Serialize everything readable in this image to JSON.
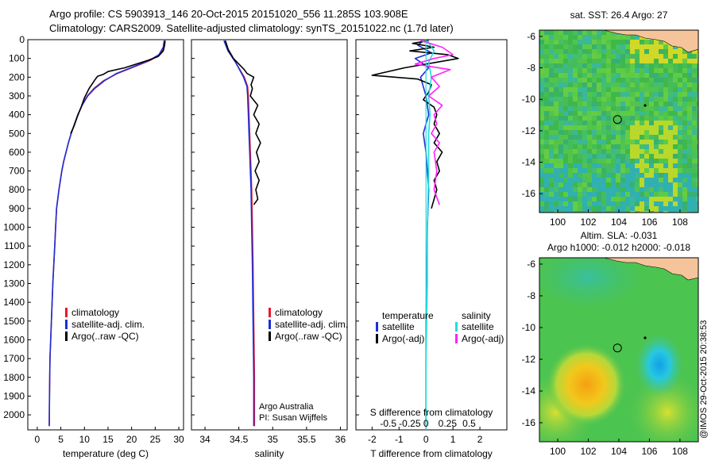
{
  "header": {
    "line1": "Argo profile: CS 5903913_146 20-Oct-2015 20151020_556 11.285S 103.908E",
    "line2": "Climatology: CARS2009. Satellite-adjusted climatology: synTS_20151022.nc (1.7d later)"
  },
  "footer": "@IMOS 29-Oct-2015 20:38:53",
  "colors": {
    "climatology": "#e8182a",
    "satellite": "#1b2fd8",
    "argo": "#000000",
    "argo_adj": "#ff22ff",
    "sat_salinity": "#22dddd"
  },
  "chart_data": [
    {
      "type": "line",
      "id": "temperature",
      "xlabel": "temperature (deg C)",
      "xlim": [
        -2,
        31
      ],
      "ylim": [
        0,
        2080
      ],
      "xticks": [
        0,
        5,
        10,
        15,
        20,
        25,
        30
      ],
      "yticks": [
        0,
        100,
        200,
        300,
        400,
        500,
        600,
        700,
        800,
        900,
        1000,
        1100,
        1200,
        1300,
        1400,
        1500,
        1600,
        1700,
        1800,
        1900,
        2000
      ],
      "legend": [
        "climatology",
        "satellite-adj. clim.",
        "Argo(..raw -QC)"
      ],
      "series": [
        {
          "name": "climatology",
          "color": "#e8182a",
          "x": [
            27.0,
            26.8,
            26.0,
            24.0,
            20.0,
            17.0,
            14.0,
            12.0,
            10.6,
            9.5,
            8.6,
            7.9,
            7.2,
            6.6,
            6.1,
            5.6,
            5.2,
            4.9,
            4.6,
            4.35,
            4.1,
            3.9,
            3.7,
            3.5,
            3.3,
            3.15,
            3.0,
            2.85,
            2.7,
            2.6,
            2.55
          ],
          "y": [
            5,
            40,
            80,
            110,
            150,
            180,
            220,
            260,
            300,
            350,
            400,
            450,
            500,
            550,
            600,
            650,
            700,
            750,
            800,
            850,
            900,
            1000,
            1100,
            1200,
            1300,
            1400,
            1500,
            1600,
            1700,
            1900,
            2060
          ]
        },
        {
          "name": "satellite-adj. clim.",
          "color": "#1b2fd8",
          "x": [
            26.9,
            26.7,
            25.8,
            23.8,
            19.8,
            16.8,
            14.2,
            12.2,
            10.7,
            9.5,
            8.6,
            7.9,
            7.2,
            6.6,
            6.1,
            5.6,
            5.2,
            4.9,
            4.6,
            4.35,
            4.1,
            3.9,
            3.7,
            3.5,
            3.3,
            3.15,
            3.0,
            2.85,
            2.7,
            2.6,
            2.55
          ],
          "y": [
            5,
            40,
            80,
            110,
            150,
            180,
            220,
            260,
            300,
            350,
            400,
            450,
            500,
            550,
            600,
            650,
            700,
            750,
            800,
            850,
            900,
            1000,
            1100,
            1200,
            1300,
            1400,
            1500,
            1600,
            1700,
            1900,
            2060
          ]
        },
        {
          "name": "Argo(..raw -QC)",
          "color": "#000000",
          "x": [
            27.1,
            27.0,
            26.7,
            25.6,
            23.5,
            21.0,
            18.5,
            15.0,
            14.0,
            12.8,
            12.2,
            11.0,
            10.0,
            9.3,
            8.5,
            7.8,
            7.1
          ],
          "y": [
            5,
            30,
            60,
            90,
            110,
            130,
            150,
            170,
            185,
            195,
            215,
            260,
            310,
            360,
            410,
            460,
            500
          ]
        }
      ]
    },
    {
      "type": "line",
      "id": "salinity",
      "xlabel": "salinity",
      "xlim": [
        33.8,
        36.1
      ],
      "ylim": [
        0,
        2080
      ],
      "xticks": [
        34,
        34.5,
        35,
        35.5,
        36
      ],
      "legend": [
        "climatology",
        "satellite-adj. clim.",
        "Argo(..raw -QC)"
      ],
      "annotations": [
        "Argo Australia",
        "PI: Susan Wijffels"
      ],
      "series": [
        {
          "name": "climatology",
          "color": "#e8182a",
          "x": [
            34.3,
            34.35,
            34.45,
            34.58,
            34.63,
            34.64,
            34.65,
            34.66,
            34.67,
            34.68,
            34.69,
            34.7,
            34.71,
            34.72,
            34.73,
            34.73
          ],
          "y": [
            5,
            60,
            120,
            200,
            250,
            300,
            400,
            500,
            600,
            700,
            800,
            1000,
            1200,
            1500,
            1800,
            2060
          ]
        },
        {
          "name": "satellite-adj. clim.",
          "color": "#1b2fd8",
          "x": [
            34.28,
            34.34,
            34.45,
            34.57,
            34.62,
            34.63,
            34.64,
            34.65,
            34.66,
            34.67,
            34.68,
            34.69,
            34.7,
            34.71,
            34.72,
            34.72
          ],
          "y": [
            5,
            60,
            120,
            200,
            250,
            300,
            400,
            500,
            600,
            700,
            800,
            1000,
            1200,
            1500,
            1800,
            2060
          ]
        },
        {
          "name": "Argo(..raw -QC)",
          "color": "#000000",
          "x": [
            34.3,
            34.34,
            34.42,
            34.5,
            34.58,
            34.62,
            34.72,
            34.68,
            34.7,
            34.67,
            34.78,
            34.72,
            34.8,
            34.75,
            34.82,
            34.76,
            34.8,
            34.74,
            34.8,
            34.75,
            34.78,
            34.72
          ],
          "y": [
            5,
            50,
            100,
            130,
            160,
            180,
            200,
            240,
            260,
            300,
            350,
            400,
            450,
            500,
            550,
            600,
            650,
            700,
            750,
            800,
            850,
            880
          ]
        }
      ]
    },
    {
      "type": "line",
      "id": "difference",
      "xlabel": "T difference from climatology",
      "secondary_xlabel": "S difference from climatology",
      "xlim": [
        -2.6,
        3.0
      ],
      "ylim": [
        0,
        2080
      ],
      "xticks": [
        -2,
        -1,
        0,
        1,
        2
      ],
      "secondary_xticks": [
        "-0.5",
        "-0.25",
        "0",
        "0.25",
        "0.5"
      ],
      "secondary_xtick_pos": [
        -1.4,
        -0.6,
        0,
        0.8,
        1.6
      ],
      "legend_headers": [
        "temperature",
        "salinity"
      ],
      "legend": [
        "satellite",
        "Argo(-adj)",
        "satellite",
        "Argo(-adj)"
      ],
      "series": [
        {
          "name": "satellite",
          "color": "#1b2fd8",
          "x": [
            -0.1,
            -0.3,
            0.2,
            -0.4,
            0.1,
            -0.2,
            0.0,
            0.1,
            -0.1,
            0.0,
            0.1,
            0.05,
            0.0,
            0.0
          ],
          "y": [
            5,
            30,
            70,
            100,
            150,
            200,
            300,
            400,
            500,
            600,
            800,
            1000,
            1500,
            2060
          ]
        },
        {
          "name": "Argo(-adj)",
          "color": "#000000",
          "x": [
            0.1,
            -0.5,
            0.3,
            -0.6,
            0.8,
            1.2,
            0.4,
            -0.8,
            -2.0,
            -0.3,
            0.2,
            0.1,
            -0.1,
            0.3,
            0.4,
            0.3,
            0.5,
            0.3,
            0.6,
            0.4,
            0.5,
            0.3,
            0.4,
            0.3,
            0.2
          ],
          "y": [
            5,
            20,
            40,
            60,
            80,
            100,
            120,
            150,
            190,
            210,
            240,
            280,
            320,
            360,
            400,
            450,
            500,
            550,
            600,
            650,
            700,
            750,
            800,
            850,
            900
          ]
        },
        {
          "name": "satellite",
          "color": "#22dddd",
          "x": [
            0.05,
            0.3,
            0.1,
            0.2,
            0.1,
            0.15,
            0.1,
            0.1,
            0.05,
            0.05,
            0.0,
            0.0
          ],
          "y": [
            5,
            60,
            120,
            200,
            300,
            400,
            500,
            700,
            1000,
            1300,
            1700,
            2060
          ]
        },
        {
          "name": "Argo(-adj)",
          "color": "#ff22ff",
          "x": [
            -0.2,
            0.6,
            1.0,
            0.3,
            -0.4,
            0.9,
            0.2,
            0.5,
            0.1,
            0.6,
            0.3,
            0.4,
            0.2,
            0.5,
            0.3,
            0.4,
            0.3,
            0.5
          ],
          "y": [
            5,
            40,
            80,
            100,
            130,
            160,
            200,
            250,
            300,
            350,
            400,
            450,
            500,
            550,
            600,
            700,
            800,
            880
          ]
        }
      ]
    },
    {
      "type": "heatmap",
      "id": "sst_map",
      "title": "sat. SST: 26.4 Argo: 27",
      "xlim": [
        98.8,
        109.2
      ],
      "ylim": [
        -17.2,
        -5.6
      ],
      "xticks": [
        100,
        102,
        104,
        106,
        108
      ],
      "yticks": [
        -6,
        -8,
        -10,
        -12,
        -14,
        -16
      ],
      "argo_position": {
        "lon": 103.908,
        "lat": -11.285
      }
    },
    {
      "type": "heatmap",
      "id": "sla_map",
      "title": "Altim. SLA: -0.031",
      "subtitle": "Argo h1000: -0.012 h2000: -0.018",
      "xlim": [
        98.8,
        109.2
      ],
      "ylim": [
        -17.2,
        -5.6
      ],
      "xticks": [
        100,
        102,
        104,
        106,
        108
      ],
      "yticks": [
        -6,
        -8,
        -10,
        -12,
        -14,
        -16
      ],
      "argo_position": {
        "lon": 103.908,
        "lat": -11.285
      }
    }
  ]
}
